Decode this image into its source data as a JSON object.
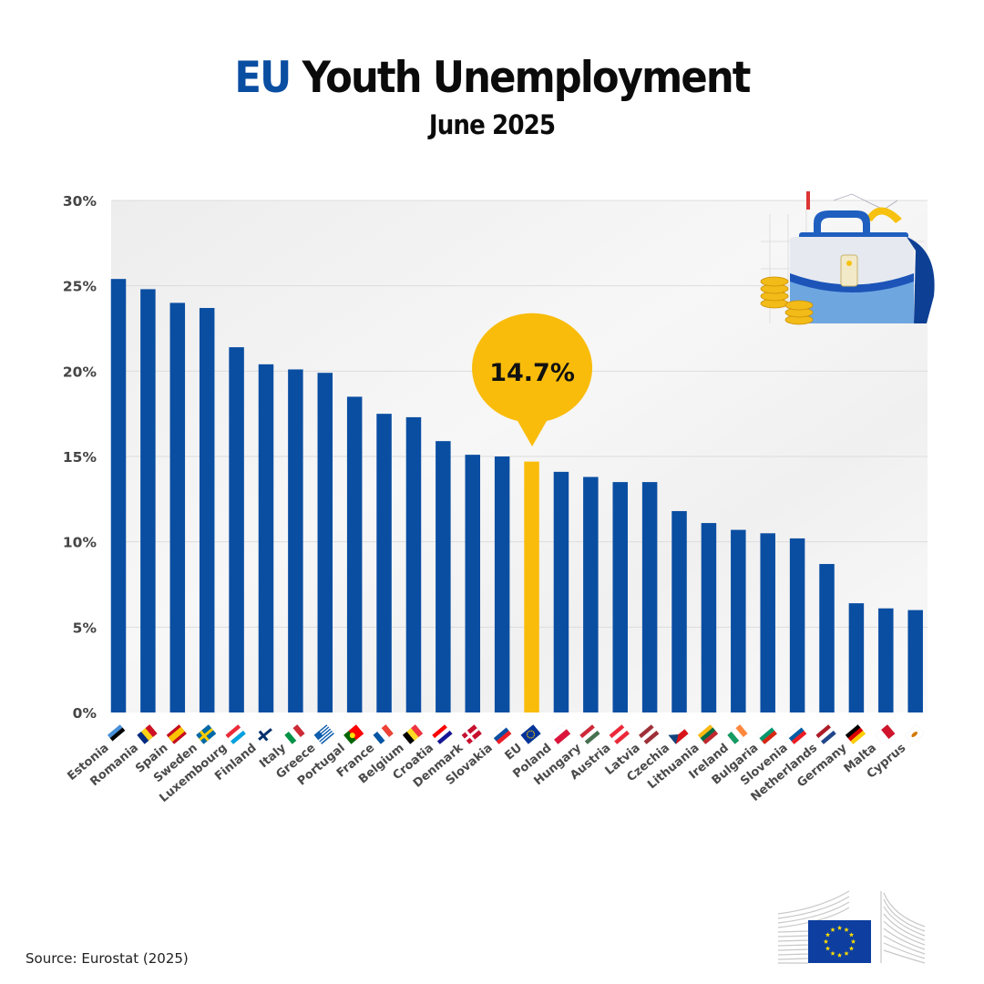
{
  "header": {
    "title_accent": "EU",
    "title_rest": " Youth Unemployment",
    "subtitle": "June 2025"
  },
  "footer": {
    "source": "Source: Eurostat (2025)"
  },
  "icons": {
    "illustration": "briefcase-with-coins-icon",
    "logo": "european-commission-logo"
  },
  "colors": {
    "bar": "#0a4ea2",
    "highlight": "#f9bc0b",
    "grid": "#dcdcdc",
    "plot_bg": "#f1f1f1"
  },
  "chart_data": {
    "type": "bar",
    "title": "EU Youth Unemployment",
    "subtitle": "June 2025",
    "xlabel": "",
    "ylabel": "",
    "ylim": [
      0,
      30
    ],
    "yticks": [
      0,
      5,
      10,
      15,
      20,
      25,
      30
    ],
    "ytick_labels": [
      "0%",
      "5%",
      "10%",
      "15%",
      "20%",
      "25%",
      "30%"
    ],
    "grid": true,
    "unit": "%",
    "categories": [
      "Estonia",
      "Romania",
      "Spain",
      "Sweden",
      "Luxembourg",
      "Finland",
      "Italy",
      "Greece",
      "Portugal",
      "France",
      "Belgium",
      "Croatia",
      "Denmark",
      "Slovakia",
      "EU",
      "Poland",
      "Hungary",
      "Austria",
      "Latvia",
      "Czechia",
      "Lithuania",
      "Ireland",
      "Bulgaria",
      "Slovenia",
      "Netherlands",
      "Germany",
      "Malta",
      "Cyprus"
    ],
    "values": [
      25.4,
      24.8,
      24.0,
      23.7,
      21.4,
      20.4,
      20.1,
      19.9,
      18.5,
      17.5,
      17.3,
      15.9,
      15.1,
      15.0,
      14.7,
      14.1,
      13.8,
      13.5,
      13.5,
      11.8,
      11.1,
      10.7,
      10.5,
      10.2,
      8.7,
      6.4,
      6.1,
      6.0
    ],
    "highlight_category": "EU",
    "annotation": {
      "category": "EU",
      "label": "14.7%"
    },
    "flags": [
      {
        "country": "Estonia",
        "colors": [
          "#4891d9",
          "#000000",
          "#ffffff"
        ],
        "layout": "h"
      },
      {
        "country": "Romania",
        "colors": [
          "#002b7f",
          "#fcd116",
          "#ce1126"
        ],
        "layout": "v"
      },
      {
        "country": "Spain",
        "colors": [
          "#c60b1e",
          "#ffc400",
          "#c60b1e"
        ],
        "layout": "spain"
      },
      {
        "country": "Sweden",
        "colors": [
          "#006aa7",
          "#fecc00"
        ],
        "layout": "nordic"
      },
      {
        "country": "Luxembourg",
        "colors": [
          "#ed2939",
          "#ffffff",
          "#00a1de"
        ],
        "layout": "h"
      },
      {
        "country": "Finland",
        "colors": [
          "#ffffff",
          "#002f6c"
        ],
        "layout": "nordic"
      },
      {
        "country": "Italy",
        "colors": [
          "#009246",
          "#ffffff",
          "#ce2b37"
        ],
        "layout": "v"
      },
      {
        "country": "Greece",
        "colors": [
          "#0d5eaf",
          "#ffffff"
        ],
        "layout": "greece"
      },
      {
        "country": "Portugal",
        "colors": [
          "#006600",
          "#ff0000"
        ],
        "layout": "portugal"
      },
      {
        "country": "France",
        "colors": [
          "#0055a4",
          "#ffffff",
          "#ef4135"
        ],
        "layout": "v"
      },
      {
        "country": "Belgium",
        "colors": [
          "#000000",
          "#fdda24",
          "#ef3340"
        ],
        "layout": "v"
      },
      {
        "country": "Croatia",
        "colors": [
          "#ff0000",
          "#ffffff",
          "#171796"
        ],
        "layout": "h"
      },
      {
        "country": "Denmark",
        "colors": [
          "#c8102e",
          "#ffffff"
        ],
        "layout": "nordic"
      },
      {
        "country": "Slovakia",
        "colors": [
          "#ffffff",
          "#0b4ea2",
          "#ee1c25"
        ],
        "layout": "h"
      },
      {
        "country": "EU",
        "colors": [
          "#003399",
          "#ffcc00"
        ],
        "layout": "eu"
      },
      {
        "country": "Poland",
        "colors": [
          "#ffffff",
          "#dc143c"
        ],
        "layout": "h"
      },
      {
        "country": "Hungary",
        "colors": [
          "#ce2939",
          "#ffffff",
          "#477050"
        ],
        "layout": "h"
      },
      {
        "country": "Austria",
        "colors": [
          "#ed2939",
          "#ffffff",
          "#ed2939"
        ],
        "layout": "h"
      },
      {
        "country": "Latvia",
        "colors": [
          "#9e3039",
          "#ffffff",
          "#9e3039"
        ],
        "layout": "h"
      },
      {
        "country": "Czechia",
        "colors": [
          "#ffffff",
          "#d7141a",
          "#11457e"
        ],
        "layout": "czech"
      },
      {
        "country": "Lithuania",
        "colors": [
          "#fdb913",
          "#006a44",
          "#c1272d"
        ],
        "layout": "h"
      },
      {
        "country": "Ireland",
        "colors": [
          "#169b62",
          "#ffffff",
          "#ff883e"
        ],
        "layout": "v"
      },
      {
        "country": "Bulgaria",
        "colors": [
          "#ffffff",
          "#00966e",
          "#d62612"
        ],
        "layout": "h"
      },
      {
        "country": "Slovenia",
        "colors": [
          "#ffffff",
          "#005da4",
          "#ed1c24"
        ],
        "layout": "h"
      },
      {
        "country": "Netherlands",
        "colors": [
          "#ae1c28",
          "#ffffff",
          "#21468b"
        ],
        "layout": "h"
      },
      {
        "country": "Germany",
        "colors": [
          "#000000",
          "#dd0000",
          "#ffce00"
        ],
        "layout": "h"
      },
      {
        "country": "Malta",
        "colors": [
          "#ffffff",
          "#cf142b"
        ],
        "layout": "v2"
      },
      {
        "country": "Cyprus",
        "colors": [
          "#ffffff",
          "#d57800"
        ],
        "layout": "cyprus"
      }
    ]
  }
}
